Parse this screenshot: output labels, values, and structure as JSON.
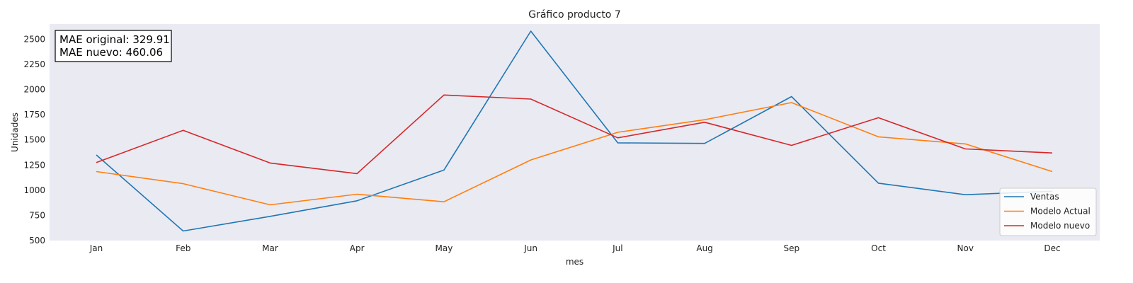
{
  "chart_data": {
    "type": "line",
    "title": "Gráfico producto 7",
    "xlabel": "mes",
    "ylabel": "Unidades",
    "categories": [
      "Jan",
      "Feb",
      "Mar",
      "Apr",
      "May",
      "Jun",
      "Jul",
      "Aug",
      "Sep",
      "Oct",
      "Nov",
      "Dec"
    ],
    "ylim": [
      500,
      2650
    ],
    "yticks": [
      500,
      750,
      1000,
      1250,
      1500,
      1750,
      2000,
      2250,
      2500
    ],
    "grid": false,
    "legend_position": "bottom-right",
    "annotation": {
      "lines": [
        "MAE original: 329.91",
        "MAE nuevo: 460.06"
      ],
      "position": "top-left"
    },
    "series": [
      {
        "name": "Ventas",
        "color": "#1f77b4",
        "values": [
          1350,
          595,
          740,
          895,
          1200,
          2580,
          1470,
          1465,
          1930,
          1070,
          955,
          990
        ]
      },
      {
        "name": "Modelo Actual",
        "color": "#ff7f0e",
        "values": [
          1185,
          1065,
          855,
          960,
          885,
          1300,
          1575,
          1700,
          1870,
          1530,
          1460,
          1185
        ]
      },
      {
        "name": "Modelo nuevo",
        "color": "#d62728",
        "values": [
          1275,
          1595,
          1270,
          1165,
          1945,
          1905,
          1520,
          1675,
          1445,
          1720,
          1410,
          1370
        ]
      }
    ]
  },
  "style": {
    "plot_background": "#eaeaf2",
    "page_background": "#ffffff"
  }
}
